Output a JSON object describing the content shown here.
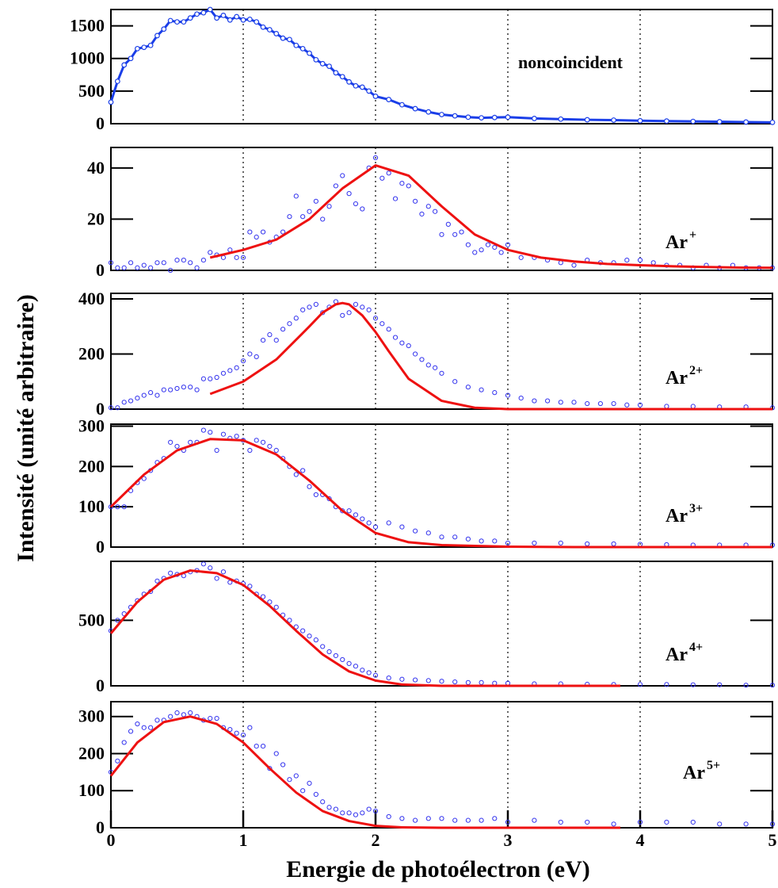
{
  "figure": {
    "xlabel": "Energie de photoélectron (eV)",
    "ylabel": "Intensité (unité arbitraire)",
    "x_ticks": [
      "0",
      "1",
      "2",
      "3",
      "4",
      "5"
    ]
  },
  "colors": {
    "data": "#3333ee",
    "fit": "#ee1111",
    "noncoincident": "#1a3ee8",
    "grid": "#000000"
  },
  "chart_data": [
    {
      "type": "line",
      "panel": "noncoincident",
      "label": "noncoincident",
      "xlim": [
        0,
        5
      ],
      "ylim": [
        0,
        1750
      ],
      "yticks": [
        0,
        500,
        1000,
        1500
      ],
      "grid": "vertical dotted at x=1,2,3,4",
      "series": [
        {
          "style": "line+markers",
          "x": [
            0.0,
            0.05,
            0.1,
            0.15,
            0.2,
            0.25,
            0.3,
            0.35,
            0.4,
            0.45,
            0.5,
            0.55,
            0.6,
            0.65,
            0.7,
            0.75,
            0.8,
            0.85,
            0.9,
            0.95,
            1.0,
            1.05,
            1.1,
            1.15,
            1.2,
            1.25,
            1.3,
            1.35,
            1.4,
            1.45,
            1.5,
            1.55,
            1.6,
            1.65,
            1.7,
            1.75,
            1.8,
            1.85,
            1.9,
            1.95,
            2.0,
            2.1,
            2.2,
            2.3,
            2.4,
            2.5,
            2.6,
            2.7,
            2.8,
            2.9,
            3.0,
            3.2,
            3.4,
            3.6,
            3.8,
            4.0,
            4.2,
            4.4,
            4.6,
            4.8,
            5.0
          ],
          "y": [
            330,
            650,
            900,
            1000,
            1150,
            1170,
            1200,
            1350,
            1450,
            1580,
            1560,
            1560,
            1620,
            1680,
            1700,
            1750,
            1620,
            1660,
            1590,
            1640,
            1590,
            1600,
            1560,
            1480,
            1440,
            1380,
            1310,
            1290,
            1200,
            1150,
            1080,
            980,
            920,
            880,
            780,
            720,
            640,
            580,
            560,
            500,
            420,
            370,
            290,
            230,
            180,
            140,
            120,
            100,
            90,
            95,
            100,
            80,
            70,
            60,
            55,
            45,
            40,
            35,
            30,
            25,
            20
          ]
        }
      ]
    },
    {
      "type": "scatter",
      "panel": "Ar+",
      "label": "Ar",
      "charge": "+",
      "xlim": [
        0,
        5
      ],
      "ylim": [
        0,
        48
      ],
      "yticks": [
        0,
        20,
        40
      ],
      "series": [
        {
          "style": "markers",
          "x": [
            0.0,
            0.05,
            0.1,
            0.15,
            0.2,
            0.25,
            0.3,
            0.35,
            0.4,
            0.45,
            0.5,
            0.55,
            0.6,
            0.65,
            0.7,
            0.75,
            0.8,
            0.85,
            0.9,
            0.95,
            1.0,
            1.05,
            1.1,
            1.15,
            1.2,
            1.25,
            1.3,
            1.35,
            1.4,
            1.45,
            1.5,
            1.55,
            1.6,
            1.65,
            1.7,
            1.75,
            1.8,
            1.85,
            1.9,
            1.95,
            2.0,
            2.05,
            2.1,
            2.15,
            2.2,
            2.25,
            2.3,
            2.35,
            2.4,
            2.45,
            2.5,
            2.55,
            2.6,
            2.65,
            2.7,
            2.75,
            2.8,
            2.85,
            2.9,
            2.95,
            3.0,
            3.1,
            3.2,
            3.3,
            3.4,
            3.5,
            3.6,
            3.7,
            3.8,
            3.9,
            4.0,
            4.1,
            4.2,
            4.3,
            4.4,
            4.5,
            4.6,
            4.7,
            4.8,
            4.9,
            5.0
          ],
          "y": [
            3,
            1,
            1,
            3,
            1,
            2,
            1,
            3,
            3,
            0,
            4,
            4,
            3,
            1,
            4,
            7,
            6,
            5,
            8,
            5,
            5,
            15,
            13,
            15,
            11,
            13,
            15,
            21,
            29,
            21,
            23,
            27,
            20,
            25,
            33,
            37,
            30,
            26,
            24,
            40,
            44,
            36,
            38,
            28,
            34,
            33,
            27,
            22,
            25,
            23,
            14,
            18,
            14,
            15,
            10,
            7,
            8,
            10,
            9,
            7,
            10,
            5,
            5,
            4,
            3,
            2,
            4,
            3,
            3,
            4,
            4,
            3,
            2,
            2,
            1,
            2,
            1,
            2,
            1,
            1,
            1
          ]
        },
        {
          "style": "fit-line",
          "x": [
            0.75,
            1.0,
            1.25,
            1.5,
            1.75,
            2.0,
            2.25,
            2.5,
            2.75,
            3.0,
            3.25,
            3.5,
            3.75,
            4.0,
            4.25,
            4.5,
            4.75,
            5.0
          ],
          "y": [
            5,
            8,
            12,
            20,
            32,
            41,
            37,
            25,
            14,
            8,
            5,
            3.5,
            2.5,
            2,
            1.6,
            1.3,
            1.1,
            1
          ]
        }
      ]
    },
    {
      "type": "scatter",
      "panel": "Ar2+",
      "label": "Ar",
      "charge": "2+",
      "xlim": [
        0,
        5
      ],
      "ylim": [
        0,
        420
      ],
      "yticks": [
        0,
        200,
        400
      ],
      "series": [
        {
          "style": "markers",
          "x": [
            0.0,
            0.05,
            0.1,
            0.15,
            0.2,
            0.25,
            0.3,
            0.35,
            0.4,
            0.45,
            0.5,
            0.55,
            0.6,
            0.65,
            0.7,
            0.75,
            0.8,
            0.85,
            0.9,
            0.95,
            1.0,
            1.05,
            1.1,
            1.15,
            1.2,
            1.25,
            1.3,
            1.35,
            1.4,
            1.45,
            1.5,
            1.55,
            1.6,
            1.65,
            1.7,
            1.75,
            1.8,
            1.85,
            1.9,
            1.95,
            2.0,
            2.05,
            2.1,
            2.15,
            2.2,
            2.25,
            2.3,
            2.35,
            2.4,
            2.45,
            2.5,
            2.6,
            2.7,
            2.8,
            2.9,
            3.0,
            3.1,
            3.2,
            3.3,
            3.4,
            3.5,
            3.6,
            3.7,
            3.8,
            3.9,
            4.0,
            4.2,
            4.4,
            4.6,
            4.8,
            5.0
          ],
          "y": [
            5,
            5,
            25,
            30,
            40,
            50,
            60,
            50,
            70,
            70,
            75,
            80,
            80,
            70,
            110,
            110,
            115,
            130,
            140,
            150,
            175,
            200,
            190,
            250,
            270,
            250,
            290,
            310,
            330,
            360,
            370,
            380,
            350,
            370,
            390,
            340,
            350,
            380,
            370,
            360,
            330,
            310,
            290,
            260,
            240,
            230,
            200,
            180,
            160,
            150,
            130,
            100,
            80,
            70,
            60,
            50,
            40,
            30,
            30,
            25,
            25,
            20,
            20,
            20,
            15,
            15,
            10,
            10,
            8,
            8,
            5
          ]
        },
        {
          "style": "fit-line",
          "x": [
            0.75,
            1.0,
            1.25,
            1.5,
            1.6,
            1.7,
            1.75,
            1.8,
            1.9,
            2.0,
            2.1,
            2.25,
            2.5,
            2.75,
            3.0,
            3.5,
            4.0,
            4.5,
            5.0
          ],
          "y": [
            55,
            100,
            180,
            300,
            350,
            380,
            385,
            380,
            340,
            280,
            210,
            110,
            30,
            5,
            0,
            0,
            0,
            0,
            0
          ]
        }
      ]
    },
    {
      "type": "scatter",
      "panel": "Ar3+",
      "label": "Ar",
      "charge": "3+",
      "xlim": [
        0,
        5
      ],
      "ylim": [
        0,
        305
      ],
      "yticks": [
        0,
        100,
        200,
        300
      ],
      "series": [
        {
          "style": "markers",
          "x": [
            0.0,
            0.05,
            0.1,
            0.15,
            0.2,
            0.25,
            0.3,
            0.35,
            0.4,
            0.45,
            0.5,
            0.55,
            0.6,
            0.65,
            0.7,
            0.75,
            0.8,
            0.85,
            0.9,
            0.95,
            1.0,
            1.05,
            1.1,
            1.15,
            1.2,
            1.25,
            1.3,
            1.35,
            1.4,
            1.45,
            1.5,
            1.55,
            1.6,
            1.65,
            1.7,
            1.75,
            1.8,
            1.85,
            1.9,
            1.95,
            2.0,
            2.1,
            2.2,
            2.3,
            2.4,
            2.5,
            2.6,
            2.7,
            2.8,
            2.9,
            3.0,
            3.2,
            3.4,
            3.6,
            3.8,
            4.0,
            4.2,
            4.4,
            4.6,
            4.8,
            5.0
          ],
          "y": [
            100,
            100,
            100,
            140,
            160,
            170,
            190,
            210,
            220,
            260,
            250,
            240,
            260,
            260,
            290,
            285,
            240,
            280,
            270,
            275,
            265,
            240,
            265,
            260,
            250,
            240,
            220,
            200,
            180,
            190,
            150,
            130,
            130,
            120,
            100,
            90,
            90,
            80,
            70,
            60,
            50,
            60,
            50,
            40,
            35,
            25,
            25,
            20,
            15,
            15,
            10,
            10,
            10,
            8,
            8,
            7,
            6,
            5,
            5,
            5,
            5
          ]
        },
        {
          "style": "fit-line",
          "x": [
            0.0,
            0.25,
            0.5,
            0.75,
            1.0,
            1.25,
            1.5,
            1.75,
            2.0,
            2.25,
            2.5,
            3.0,
            3.5,
            4.0,
            4.5,
            5.0
          ],
          "y": [
            100,
            180,
            240,
            268,
            265,
            230,
            165,
            90,
            35,
            12,
            5,
            1,
            0,
            0,
            0,
            0
          ]
        }
      ]
    },
    {
      "type": "scatter",
      "panel": "Ar4+",
      "label": "Ar",
      "charge": "4+",
      "xlim": [
        0,
        5
      ],
      "ylim": [
        0,
        950
      ],
      "yticks": [
        0,
        500
      ],
      "series": [
        {
          "style": "markers",
          "x": [
            0.0,
            0.05,
            0.1,
            0.15,
            0.2,
            0.25,
            0.3,
            0.35,
            0.4,
            0.45,
            0.5,
            0.55,
            0.6,
            0.65,
            0.7,
            0.75,
            0.8,
            0.85,
            0.9,
            0.95,
            1.0,
            1.05,
            1.1,
            1.15,
            1.2,
            1.25,
            1.3,
            1.35,
            1.4,
            1.45,
            1.5,
            1.55,
            1.6,
            1.65,
            1.7,
            1.75,
            1.8,
            1.85,
            1.9,
            1.95,
            2.0,
            2.1,
            2.2,
            2.3,
            2.4,
            2.5,
            2.6,
            2.7,
            2.8,
            2.9,
            3.0,
            3.2,
            3.4,
            3.6,
            3.8,
            4.0,
            4.2,
            4.4,
            4.6,
            4.8,
            5.0
          ],
          "y": [
            420,
            500,
            550,
            600,
            650,
            700,
            720,
            800,
            820,
            860,
            850,
            840,
            870,
            880,
            930,
            900,
            820,
            870,
            790,
            800,
            780,
            760,
            700,
            680,
            640,
            600,
            540,
            500,
            450,
            420,
            380,
            350,
            300,
            260,
            230,
            200,
            170,
            150,
            120,
            100,
            80,
            60,
            50,
            45,
            40,
            35,
            30,
            25,
            25,
            20,
            20,
            15,
            15,
            12,
            10,
            10,
            10,
            8,
            8,
            5,
            5
          ]
        },
        {
          "style": "fit-line",
          "x": [
            0.0,
            0.2,
            0.4,
            0.6,
            0.8,
            1.0,
            1.2,
            1.4,
            1.6,
            1.8,
            2.0,
            2.2,
            2.5,
            3.0,
            3.5,
            3.85
          ],
          "y": [
            400,
            640,
            810,
            880,
            860,
            770,
            610,
            420,
            240,
            110,
            40,
            10,
            0,
            0,
            0,
            0
          ]
        }
      ]
    },
    {
      "type": "scatter",
      "panel": "Ar5+",
      "label": "Ar",
      "charge": "5+",
      "xlim": [
        0,
        5
      ],
      "ylim": [
        0,
        340
      ],
      "yticks": [
        0,
        100,
        200,
        300
      ],
      "series": [
        {
          "style": "markers",
          "x": [
            0.0,
            0.05,
            0.1,
            0.15,
            0.2,
            0.25,
            0.3,
            0.35,
            0.4,
            0.45,
            0.5,
            0.55,
            0.6,
            0.65,
            0.7,
            0.75,
            0.8,
            0.85,
            0.9,
            0.95,
            1.0,
            1.05,
            1.1,
            1.15,
            1.2,
            1.25,
            1.3,
            1.35,
            1.4,
            1.45,
            1.5,
            1.55,
            1.6,
            1.65,
            1.7,
            1.75,
            1.8,
            1.85,
            1.9,
            1.95,
            2.0,
            2.1,
            2.2,
            2.3,
            2.4,
            2.5,
            2.6,
            2.7,
            2.8,
            2.9,
            3.0,
            3.2,
            3.4,
            3.6,
            3.8,
            4.0,
            4.2,
            4.4,
            4.6,
            4.8,
            5.0
          ],
          "y": [
            150,
            180,
            230,
            260,
            280,
            270,
            270,
            290,
            290,
            300,
            310,
            305,
            310,
            300,
            290,
            295,
            295,
            270,
            265,
            255,
            250,
            270,
            220,
            220,
            160,
            200,
            170,
            130,
            140,
            100,
            120,
            90,
            70,
            55,
            50,
            40,
            40,
            35,
            40,
            50,
            45,
            30,
            25,
            20,
            25,
            25,
            20,
            20,
            20,
            25,
            15,
            20,
            15,
            15,
            10,
            15,
            15,
            15,
            10,
            10,
            10
          ]
        },
        {
          "style": "fit-line",
          "x": [
            0.0,
            0.2,
            0.4,
            0.6,
            0.8,
            1.0,
            1.2,
            1.4,
            1.6,
            1.8,
            2.0,
            2.2,
            2.5,
            3.0,
            3.5,
            3.85
          ],
          "y": [
            140,
            230,
            285,
            300,
            280,
            230,
            160,
            95,
            45,
            18,
            5,
            1,
            0,
            0,
            0,
            0
          ]
        }
      ]
    }
  ]
}
